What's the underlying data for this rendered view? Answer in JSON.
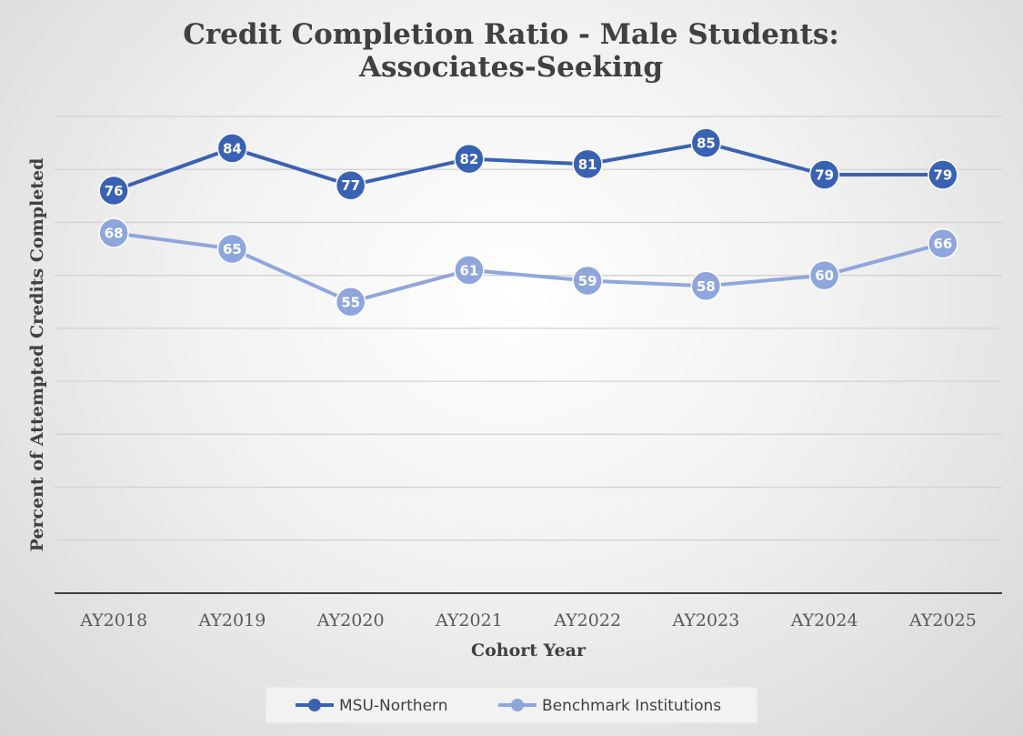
{
  "chart_data": {
    "type": "line",
    "title": "Credit Completion Ratio - Male Students: Associates-Seeking",
    "title_lines": [
      "Credit Completion Ratio - Male Students:",
      "Associates-Seeking"
    ],
    "xlabel": "Cohort Year",
    "ylabel": "Percent of Attempted Credits Completed",
    "categories": [
      "AY2018",
      "AY2019",
      "AY2020",
      "AY2021",
      "AY2022",
      "AY2023",
      "AY2024",
      "AY2025"
    ],
    "ylim": [
      0,
      90
    ],
    "grid": true,
    "legend_position": "bottom",
    "series": [
      {
        "name": "MSU-Northern",
        "color": "#3a62b3",
        "values": [
          76,
          84,
          77,
          82,
          81,
          85,
          79,
          79
        ]
      },
      {
        "name": "Benchmark Institutions",
        "color": "#8fa6dc",
        "values": [
          68,
          65,
          55,
          61,
          59,
          58,
          60,
          66
        ]
      }
    ]
  }
}
